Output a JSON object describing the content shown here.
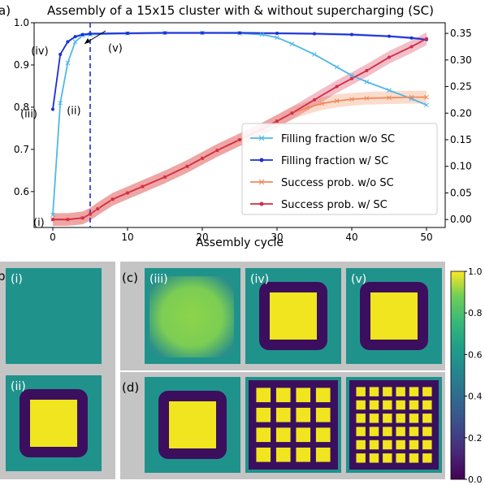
{
  "chart_data": [
    {
      "type": "line",
      "panel_label": "a)",
      "title": "Assembly of a 15x15 cluster with & without supercharging (SC)",
      "xlabel": "Assembly cycle",
      "ylabel": "",
      "y2label": "",
      "xlim": [
        -2.5,
        52.5
      ],
      "ylim": [
        0.515,
        1.0
      ],
      "y2lim": [
        -0.015,
        0.37
      ],
      "xticks": [
        0,
        10,
        20,
        30,
        40,
        50
      ],
      "yticks": [
        0.6,
        0.7,
        0.8,
        0.9,
        1.0
      ],
      "y2ticks": [
        0.0,
        0.05,
        0.1,
        0.15,
        0.2,
        0.25,
        0.3,
        0.35
      ],
      "vline": {
        "x": 5,
        "style": "dashed",
        "color": "#1f2fbf"
      },
      "legend_position": "center-right",
      "series": [
        {
          "name": "Filling fraction w/o SC",
          "axis": "left",
          "color": "#4fb8e6",
          "marker": "x",
          "x": [
            0,
            1,
            2,
            3,
            4,
            5,
            10,
            15,
            20,
            25,
            28,
            30,
            32,
            35,
            38,
            40,
            42,
            45,
            48,
            50
          ],
          "y": [
            0.545,
            0.81,
            0.905,
            0.955,
            0.97,
            0.972,
            0.975,
            0.976,
            0.976,
            0.975,
            0.972,
            0.965,
            0.95,
            0.925,
            0.895,
            0.875,
            0.86,
            0.84,
            0.82,
            0.805
          ]
        },
        {
          "name": "Filling fraction w/ SC",
          "axis": "left",
          "color": "#1a2fd6",
          "marker": "o",
          "x": [
            0,
            1,
            2,
            3,
            4,
            5,
            10,
            15,
            20,
            25,
            30,
            35,
            40,
            45,
            48,
            50
          ],
          "y": [
            0.795,
            0.925,
            0.955,
            0.967,
            0.972,
            0.974,
            0.975,
            0.976,
            0.976,
            0.976,
            0.975,
            0.974,
            0.972,
            0.968,
            0.964,
            0.96
          ],
          "band": 0.003
        },
        {
          "name": "Success prob. w/o SC",
          "axis": "right",
          "color": "#f08a5a",
          "marker": "x",
          "x": [
            0,
            2,
            4,
            5,
            6,
            8,
            10,
            12,
            15,
            18,
            20,
            22,
            25,
            28,
            30,
            32,
            34,
            36,
            38,
            40,
            42,
            45,
            48,
            50
          ],
          "y": [
            0.0,
            0.0,
            0.003,
            0.01,
            0.02,
            0.038,
            0.05,
            0.062,
            0.08,
            0.1,
            0.115,
            0.13,
            0.15,
            0.17,
            0.185,
            0.2,
            0.21,
            0.218,
            0.223,
            0.226,
            0.228,
            0.229,
            0.23,
            0.23
          ],
          "band": 0.012
        },
        {
          "name": "Success prob. w/ SC",
          "axis": "right",
          "color": "#d42a4a",
          "marker": "o",
          "x": [
            0,
            2,
            4,
            5,
            6,
            8,
            10,
            12,
            15,
            18,
            20,
            22,
            25,
            28,
            30,
            32,
            35,
            38,
            40,
            42,
            45,
            48,
            50
          ],
          "y": [
            0.0,
            0.0,
            0.003,
            0.01,
            0.02,
            0.038,
            0.05,
            0.062,
            0.08,
            0.1,
            0.115,
            0.13,
            0.15,
            0.17,
            0.185,
            0.2,
            0.225,
            0.25,
            0.265,
            0.28,
            0.305,
            0.325,
            0.34
          ],
          "band": 0.012
        }
      ],
      "annotations": [
        {
          "text": "(i)",
          "x": 0,
          "y": 0.53,
          "axis": "left"
        },
        {
          "text": "(ii)",
          "x": 1,
          "y": 0.81,
          "axis": "left"
        },
        {
          "text": "(iii)",
          "x": 0,
          "y": 0.795,
          "axis": "left"
        },
        {
          "text": "(iv)",
          "x": 1,
          "y": 0.925,
          "axis": "left"
        },
        {
          "text": "(v)",
          "x": 5,
          "y": 0.974,
          "axis": "left"
        }
      ]
    },
    {
      "type": "heatmap",
      "panel_label": "b)",
      "panels": [
        {
          "label": "(i)",
          "pattern": "uniform"
        },
        {
          "label": "(ii)",
          "pattern": "square"
        }
      ]
    },
    {
      "type": "heatmap",
      "panel_label": "(c)",
      "panels": [
        {
          "label": "(iii)",
          "pattern": "fuzzy"
        },
        {
          "label": "(iv)",
          "pattern": "square"
        },
        {
          "label": "(v)",
          "pattern": "square"
        }
      ]
    },
    {
      "type": "heatmap",
      "panel_label": "(d)",
      "panels": [
        {
          "label": "",
          "pattern": "square"
        },
        {
          "label": "",
          "pattern": "grid4"
        },
        {
          "label": "",
          "pattern": "grid6"
        }
      ]
    }
  ],
  "colorbar": {
    "ticks": [
      "0.0",
      "0.2",
      "0.4",
      "0.6",
      "0.8",
      "1.0"
    ],
    "range": [
      0,
      1
    ],
    "colormap": "viridis"
  },
  "colors": {
    "panel_bg": "#c4c4c4",
    "heat_low": "#3b0f5e",
    "heat_bg": "#20928c",
    "heat_high": "#f0e51f"
  }
}
